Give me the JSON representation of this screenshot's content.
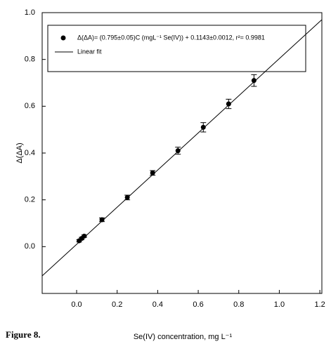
{
  "chart_data": {
    "type": "scatter",
    "caption": "Figure 8.",
    "x_label": "Se(IV) concentration, mg L⁻¹",
    "y_label": "Δ(ΔA)",
    "xlim": [
      -0.17,
      1.21
    ],
    "ylim": [
      -0.2,
      1.0
    ],
    "xticks": [
      {
        "value": 0,
        "label": "0.0"
      },
      0.2,
      0.4,
      0.6,
      0.8,
      {
        "value": 1,
        "label": "1.0"
      },
      1.2
    ],
    "yticks": [
      {
        "value": 0,
        "label": "0.0"
      },
      0.2,
      0.4,
      0.6,
      0.8,
      {
        "value": 1,
        "label": "1.0"
      }
    ],
    "series": [
      {
        "name": "Δ(ΔA)= (0.795±0.05)C (mgL⁻¹ Se(IV)) + 0.1143±0.0012, r²= 0.9981",
        "type": "scatter",
        "color": "#000000",
        "x": [
          0.0125,
          0.025,
          0.0375,
          0.125,
          0.25,
          0.375,
          0.5,
          0.625,
          0.75,
          0.875
        ],
        "values": [
          0.025,
          0.035,
          0.045,
          0.115,
          0.21,
          0.315,
          0.41,
          0.51,
          0.61,
          0.71
        ],
        "errors": [
          0.005,
          0.005,
          0.005,
          0.008,
          0.01,
          0.01,
          0.015,
          0.02,
          0.02,
          0.025
        ]
      },
      {
        "name": "Linear fit",
        "type": "line",
        "color": "#000000",
        "x": [
          -0.17,
          1.21
        ],
        "values": [
          -0.125,
          0.97
        ]
      }
    ]
  }
}
